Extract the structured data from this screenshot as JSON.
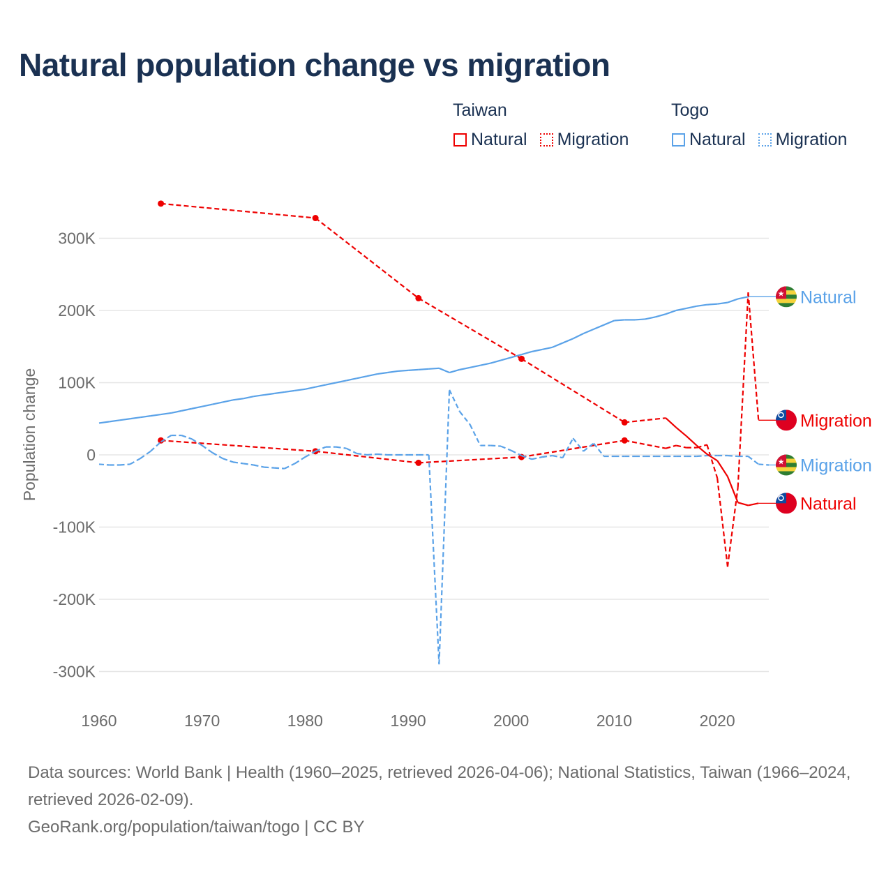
{
  "title": "Natural population change vs migration",
  "legend": {
    "groups": [
      {
        "name": "Taiwan",
        "items": [
          {
            "label": "Natural",
            "color": "#ee0000",
            "style": "solid"
          },
          {
            "label": "Migration",
            "color": "#ee0000",
            "style": "dotted"
          }
        ]
      },
      {
        "name": "Togo",
        "items": [
          {
            "label": "Natural",
            "color": "#5aa2e8",
            "style": "solid"
          },
          {
            "label": "Migration",
            "color": "#5aa2e8",
            "style": "dotted"
          }
        ]
      }
    ]
  },
  "chart_data": {
    "type": "line",
    "title": "Natural population change vs migration",
    "xlabel": "",
    "ylabel": "Population change",
    "xlim": [
      1960,
      2025
    ],
    "ylim": [
      -300000,
      300000
    ],
    "x_ticks": [
      1960,
      1970,
      1980,
      1990,
      2000,
      2010,
      2020
    ],
    "y_ticks": [
      300000,
      200000,
      100000,
      0,
      -100000,
      -200000,
      -300000
    ],
    "y_tick_labels": [
      "300K",
      "200K",
      "100K",
      "0",
      "-100K",
      "-200K",
      "-300K"
    ],
    "grid": true,
    "series": [
      {
        "name": "Togo Natural",
        "country": "Togo",
        "kind": "Natural",
        "end_label": "Natural",
        "flag": "togo",
        "color": "#5aa2e8",
        "dashed": false,
        "x": [
          1960,
          1961,
          1962,
          1963,
          1964,
          1965,
          1966,
          1967,
          1968,
          1969,
          1970,
          1971,
          1972,
          1973,
          1974,
          1975,
          1976,
          1977,
          1978,
          1979,
          1980,
          1981,
          1982,
          1983,
          1984,
          1985,
          1986,
          1987,
          1988,
          1989,
          1990,
          1991,
          1992,
          1993,
          1994,
          1995,
          1996,
          1997,
          1998,
          1999,
          2000,
          2001,
          2002,
          2003,
          2004,
          2005,
          2006,
          2007,
          2008,
          2009,
          2010,
          2011,
          2012,
          2013,
          2014,
          2015,
          2016,
          2017,
          2018,
          2019,
          2020,
          2021,
          2022,
          2023
        ],
        "y": [
          44000,
          46000,
          48000,
          50000,
          52000,
          54000,
          56000,
          58000,
          61000,
          64000,
          67000,
          70000,
          73000,
          76000,
          78000,
          81000,
          83000,
          85000,
          87000,
          89000,
          91000,
          94000,
          97000,
          100000,
          103000,
          106000,
          109000,
          112000,
          114000,
          116000,
          117000,
          118000,
          119000,
          120000,
          114000,
          118000,
          121000,
          124000,
          127000,
          131000,
          135000,
          139000,
          143000,
          146000,
          149000,
          155000,
          161000,
          168000,
          174000,
          180000,
          186000,
          187000,
          187000,
          188000,
          191000,
          195000,
          200000,
          203000,
          206000,
          208000,
          209000,
          211000,
          216000,
          219000
        ]
      },
      {
        "name": "Taiwan Migration",
        "country": "Taiwan",
        "kind": "Migration",
        "end_label": "Migration",
        "flag": "taiwan",
        "color": "#ee0000",
        "dashed": true,
        "x": [
          1966,
          1981,
          1991,
          2001,
          2011,
          2015,
          2016,
          2017,
          2018,
          2019,
          2020,
          2021,
          2022,
          2023,
          2024
        ],
        "y": [
          20000,
          5000,
          -11000,
          -3000,
          20000,
          9000,
          13000,
          10000,
          10000,
          14000,
          -32000,
          -155000,
          -45000,
          225000,
          48000
        ]
      },
      {
        "name": "Togo Migration",
        "country": "Togo",
        "kind": "Migration",
        "end_label": "Migration",
        "flag": "togo",
        "color": "#5aa2e8",
        "dashed": true,
        "x": [
          1960,
          1961,
          1962,
          1963,
          1964,
          1965,
          1966,
          1967,
          1968,
          1969,
          1970,
          1971,
          1972,
          1973,
          1974,
          1975,
          1976,
          1977,
          1978,
          1979,
          1980,
          1981,
          1982,
          1983,
          1984,
          1985,
          1986,
          1987,
          1988,
          1989,
          1990,
          1991,
          1992,
          1993,
          1994,
          1995,
          1996,
          1997,
          1998,
          1999,
          2000,
          2001,
          2002,
          2003,
          2004,
          2005,
          2006,
          2007,
          2008,
          2009,
          2010,
          2011,
          2012,
          2013,
          2014,
          2015,
          2016,
          2017,
          2018,
          2019,
          2020,
          2021,
          2022,
          2023,
          2024,
          2025
        ],
        "y": [
          -13000,
          -14000,
          -14000,
          -13000,
          -5000,
          5000,
          18000,
          27000,
          27000,
          22000,
          13000,
          3000,
          -5000,
          -10000,
          -12000,
          -14000,
          -17000,
          -18000,
          -19000,
          -12000,
          -3000,
          5000,
          11000,
          11000,
          9000,
          2000,
          0,
          1000,
          0,
          0,
          0,
          0,
          0,
          -290000,
          90000,
          60000,
          42000,
          13000,
          13000,
          12000,
          6000,
          -1000,
          -6000,
          -3000,
          -1000,
          -4000,
          23000,
          5000,
          16000,
          -2000,
          -2000,
          -2000,
          -2000,
          -2000,
          -2000,
          -2000,
          -2000,
          -2000,
          -2000,
          -1000,
          -1000,
          -1000,
          -2000,
          -2000,
          -13000,
          -14000
        ]
      },
      {
        "name": "Taiwan Natural",
        "country": "Taiwan",
        "kind": "Natural",
        "end_label": "Natural",
        "flag": "taiwan",
        "color": "#ee0000",
        "dashed": false,
        "x": [
          1966,
          1981,
          1991,
          2001,
          2011,
          2015,
          2016,
          2017,
          2018,
          2019,
          2020,
          2021,
          2022,
          2023,
          2024
        ],
        "y": [
          348000,
          328000,
          217000,
          133000,
          45000,
          51000,
          38000,
          26000,
          13000,
          1000,
          -8000,
          -30000,
          -66000,
          -70000,
          -67000
        ]
      }
    ]
  },
  "footer": {
    "sources": "Data sources: World Bank | Health (1960–2025, retrieved 2026-04-06); National Statistics, Taiwan (1966–2024, retrieved 2026-02-09).",
    "credit": "GeoRank.org/population/taiwan/togo | CC BY"
  }
}
